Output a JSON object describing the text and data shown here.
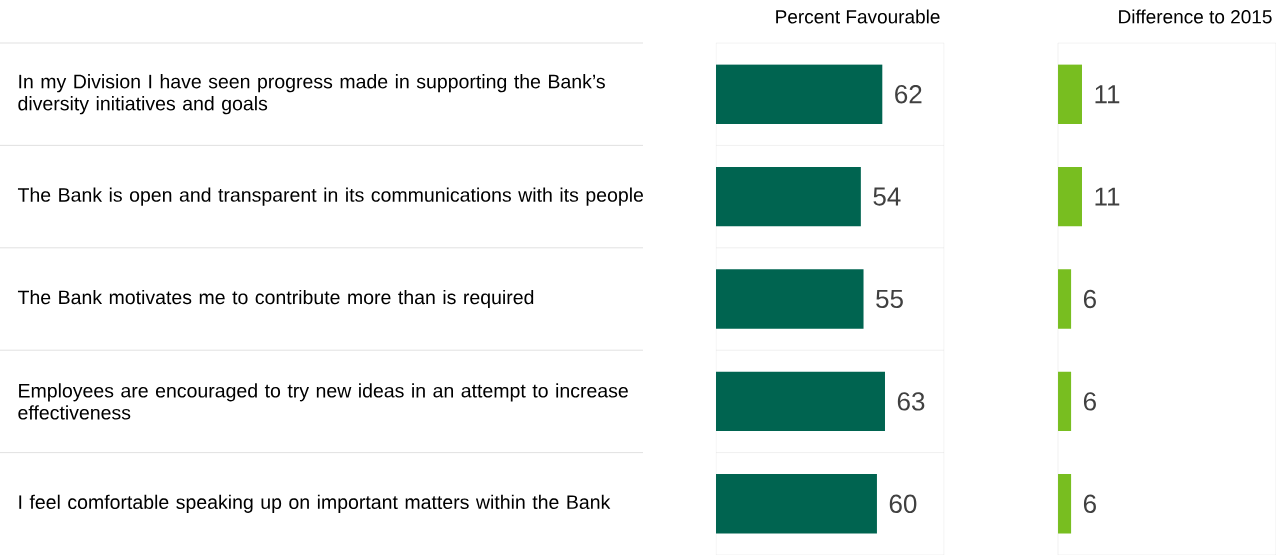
{
  "chart_data": [
    {
      "type": "bar",
      "orientation": "horizontal",
      "title": "Percent Favourable",
      "categories": [
        "In my Division I have seen progress made in supporting the Bank’s diversity initiatives and goals",
        "The Bank is open and transparent in its communications with its people",
        "The Bank motivates me to contribute more than is required",
        "Employees are encouraged to try new ideas in an attempt to increase effectiveness",
        "I feel comfortable speaking up on important matters within the Bank"
      ],
      "values": [
        62,
        54,
        55,
        63,
        60
      ],
      "color": "#006450",
      "xlim": [
        0,
        85
      ],
      "data_labels": true,
      "grid": true,
      "tick_labels": "y"
    },
    {
      "type": "bar",
      "orientation": "horizontal",
      "title": "Difference to 2015",
      "categories": [
        null,
        null,
        null,
        null,
        null
      ],
      "values": [
        11,
        11,
        6,
        6,
        6
      ],
      "color": "#78be20",
      "xlim": [
        0,
        100
      ],
      "data_labels": true,
      "grid": true,
      "tick_labels": false
    }
  ]
}
